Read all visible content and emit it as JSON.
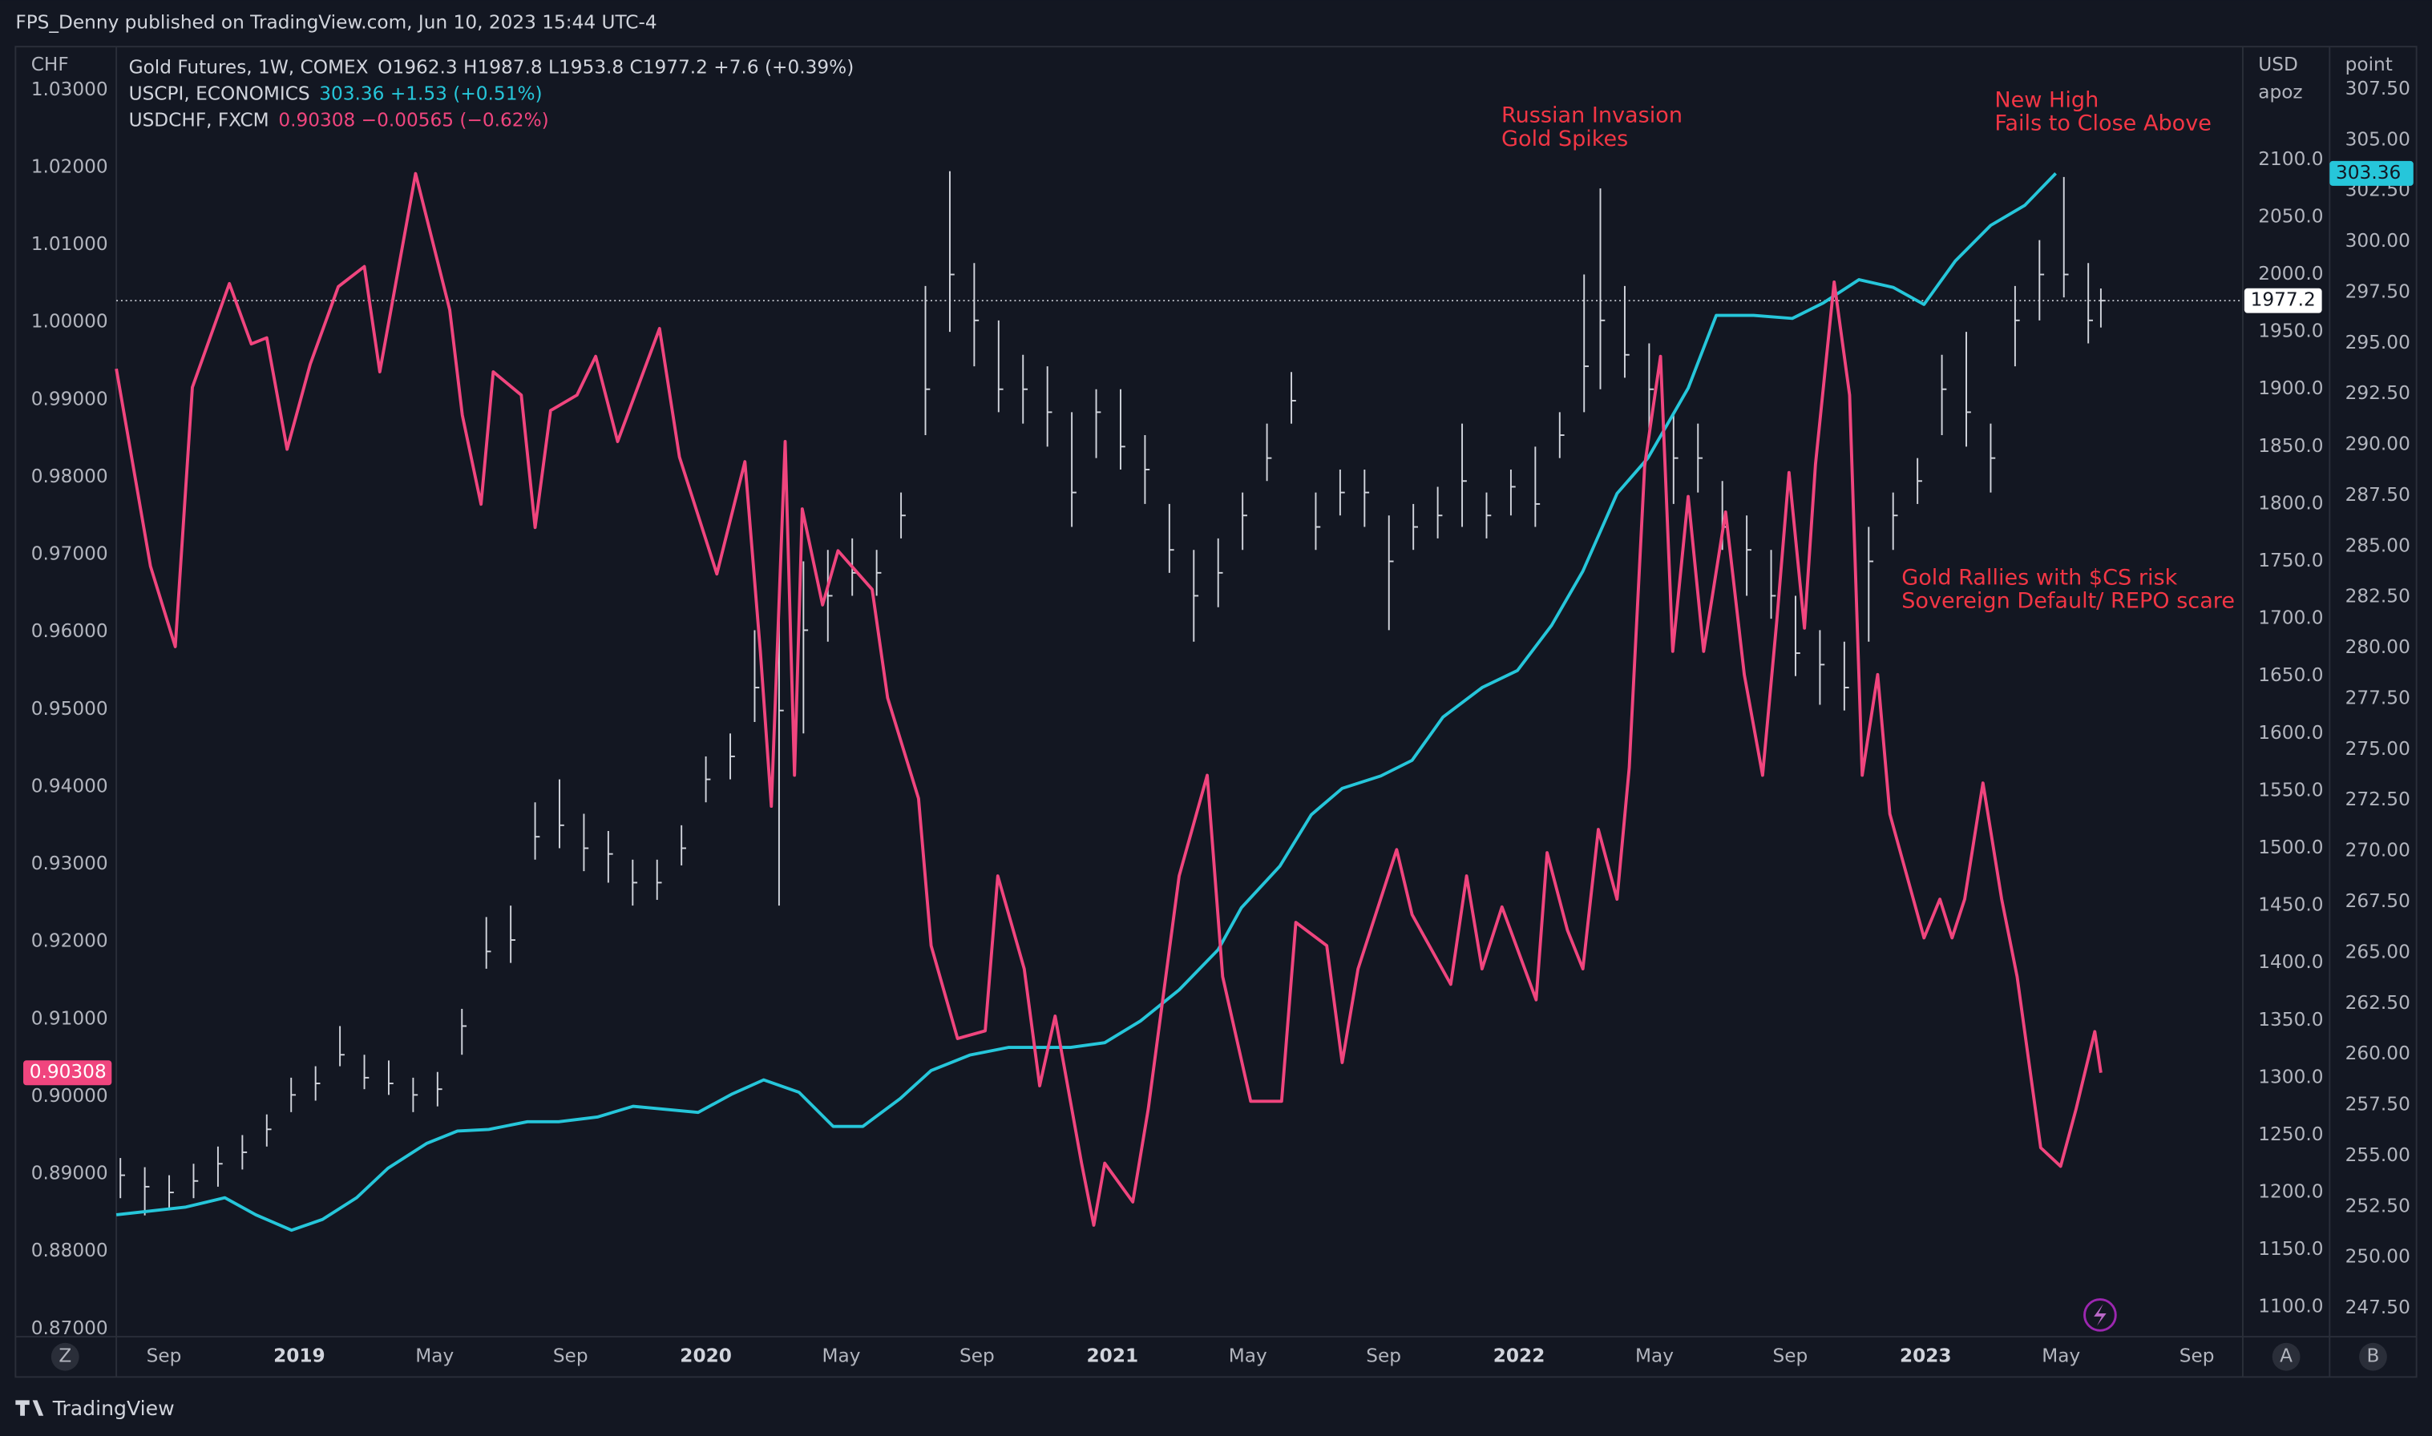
{
  "header": "FPS_Denny published on TradingView.com, Jun 10, 2023 15:44 UTC-4",
  "footer": "TradingView",
  "ui": {
    "buttons": [
      "Z",
      "A",
      "B"
    ]
  },
  "chart_data": {
    "type": "line",
    "axis_titles": {
      "y": "CHF",
      "y2": [
        "USD",
        "apoz"
      ],
      "y3": "point"
    },
    "annotations": [
      [
        "Russian Invasion",
        "Gold Spikes"
      ],
      [
        "New High",
        "Fails to Close Above"
      ],
      [
        "Gold Rallies with $CS risk",
        "Sovereign Default/ REPO scare"
      ]
    ],
    "annotation_color": "#f23645",
    "grid": true,
    "xlim": [
      2018.55,
      2023.78
    ],
    "xticks": [
      {
        "value": 2018.667,
        "label": "Sep"
      },
      2019,
      {
        "value": 2019.333,
        "label": "May"
      },
      {
        "value": 2019.667,
        "label": "Sep"
      },
      2020,
      {
        "value": 2020.333,
        "label": "May"
      },
      {
        "value": 2020.667,
        "label": "Sep"
      },
      2021,
      {
        "value": 2021.333,
        "label": "May"
      },
      {
        "value": 2021.667,
        "label": "Sep"
      },
      2022,
      {
        "value": 2022.333,
        "label": "May"
      },
      {
        "value": 2022.667,
        "label": "Sep"
      },
      2023,
      {
        "value": 2023.333,
        "label": "May"
      },
      {
        "value": 2023.667,
        "label": "Sep"
      }
    ],
    "ylim": [
      0.869,
      1.0356
    ],
    "yticks": [
      {
        "value": 0.87,
        "label": "0.87000"
      },
      {
        "value": 0.88,
        "label": "0.88000"
      },
      {
        "value": 0.89,
        "label": "0.89000"
      },
      {
        "value": 0.9,
        "label": "0.90000"
      },
      {
        "value": 0.91,
        "label": "0.91000"
      },
      {
        "value": 0.92,
        "label": "0.92000"
      },
      {
        "value": 0.93,
        "label": "0.93000"
      },
      {
        "value": 0.94,
        "label": "0.94000"
      },
      {
        "value": 0.95,
        "label": "0.95000"
      },
      {
        "value": 0.96,
        "label": "0.96000"
      },
      {
        "value": 0.97,
        "label": "0.97000"
      },
      {
        "value": 0.98,
        "label": "0.98000"
      },
      {
        "value": 0.99,
        "label": "0.99000"
      },
      {
        "value": 1.0,
        "label": "1.00000"
      },
      {
        "value": 1.01,
        "label": "1.01000"
      },
      {
        "value": 1.02,
        "label": "1.02000"
      },
      {
        "value": 1.03,
        "label": "1.03000"
      }
    ],
    "y2lim": [
      1074.3,
      2198.6
    ],
    "y2ticks": [
      {
        "value": 1100,
        "label": "1100.0"
      },
      {
        "value": 1150,
        "label": "1150.0"
      },
      {
        "value": 1200,
        "label": "1200.0"
      },
      {
        "value": 1250,
        "label": "1250.0"
      },
      {
        "value": 1300,
        "label": "1300.0"
      },
      {
        "value": 1350,
        "label": "1350.0"
      },
      {
        "value": 1400,
        "label": "1400.0"
      },
      {
        "value": 1450,
        "label": "1450.0"
      },
      {
        "value": 1500,
        "label": "1500.0"
      },
      {
        "value": 1550,
        "label": "1550.0"
      },
      {
        "value": 1600,
        "label": "1600.0"
      },
      {
        "value": 1650,
        "label": "1650.0"
      },
      {
        "value": 1700,
        "label": "1700.0"
      },
      {
        "value": 1750,
        "label": "1750.0"
      },
      {
        "value": 1800,
        "label": "1800.0"
      },
      {
        "value": 1850,
        "label": "1850.0"
      },
      {
        "value": 1900,
        "label": "1900.0"
      },
      {
        "value": 1950,
        "label": "1950.0"
      },
      {
        "value": 2000,
        "label": "2000.0"
      },
      {
        "value": 2050,
        "label": "2050.0"
      },
      {
        "value": 2100,
        "label": "2100.0"
      }
    ],
    "y3lim": [
      246.1,
      309.6
    ],
    "y3ticks": [
      {
        "value": 247.5,
        "label": "247.50"
      },
      {
        "value": 250,
        "label": "250.00"
      },
      {
        "value": 252.5,
        "label": "252.50"
      },
      {
        "value": 255,
        "label": "255.00"
      },
      {
        "value": 257.5,
        "label": "257.50"
      },
      {
        "value": 260,
        "label": "260.00"
      },
      {
        "value": 262.5,
        "label": "262.50"
      },
      {
        "value": 265,
        "label": "265.00"
      },
      {
        "value": 267.5,
        "label": "267.50"
      },
      {
        "value": 270,
        "label": "270.00"
      },
      {
        "value": 272.5,
        "label": "272.50"
      },
      {
        "value": 275,
        "label": "275.00"
      },
      {
        "value": 277.5,
        "label": "277.50"
      },
      {
        "value": 280,
        "label": "280.00"
      },
      {
        "value": 282.5,
        "label": "282.50"
      },
      {
        "value": 285,
        "label": "285.00"
      },
      {
        "value": 287.5,
        "label": "287.50"
      },
      {
        "value": 290,
        "label": "290.00"
      },
      {
        "value": 292.5,
        "label": "292.50"
      },
      {
        "value": 295,
        "label": "295.00"
      },
      {
        "value": 297.5,
        "label": "297.50"
      },
      {
        "value": 300,
        "label": "300.00"
      },
      {
        "value": 302.5,
        "label": "302.50"
      },
      {
        "value": 305,
        "label": "305.00"
      },
      {
        "value": 307.5,
        "label": "307.50"
      }
    ],
    "series": [
      {
        "name": "Gold Futures, 1W, COMEX",
        "type": "ohlc",
        "axis": "y2",
        "color": "#d1d4dc",
        "legend_text": "O1962.3 H1987.8 L1953.8 C1977.2 +7.6 (+0.39%)",
        "x": [
          2018.56,
          2018.62,
          2018.68,
          2018.74,
          2018.8,
          2018.86,
          2018.92,
          2018.98,
          2019.04,
          2019.1,
          2019.16,
          2019.22,
          2019.28,
          2019.34,
          2019.4,
          2019.46,
          2019.52,
          2019.58,
          2019.64,
          2019.7,
          2019.76,
          2019.82,
          2019.88,
          2019.94,
          2020.0,
          2020.06,
          2020.12,
          2020.18,
          2020.24,
          2020.3,
          2020.36,
          2020.42,
          2020.48,
          2020.54,
          2020.6,
          2020.66,
          2020.72,
          2020.78,
          2020.84,
          2020.9,
          2020.96,
          2021.02,
          2021.08,
          2021.14,
          2021.2,
          2021.26,
          2021.32,
          2021.38,
          2021.44,
          2021.5,
          2021.56,
          2021.62,
          2021.68,
          2021.74,
          2021.8,
          2021.86,
          2021.92,
          2021.98,
          2022.04,
          2022.1,
          2022.16,
          2022.2,
          2022.26,
          2022.32,
          2022.38,
          2022.44,
          2022.5,
          2022.56,
          2022.62,
          2022.68,
          2022.74,
          2022.8,
          2022.86,
          2022.92,
          2022.98,
          2023.04,
          2023.1,
          2023.16,
          2023.22,
          2023.28,
          2023.34,
          2023.4,
          2023.431
        ],
        "values": [
          1215,
          1205,
          1200,
          1210,
          1225,
          1235,
          1255,
          1285,
          1295,
          1320,
          1300,
          1295,
          1285,
          1290,
          1345,
          1410,
          1420,
          1510,
          1520,
          1500,
          1495,
          1470,
          1470,
          1500,
          1560,
          1580,
          1640,
          1620,
          1690,
          1720,
          1740,
          1740,
          1790,
          1900,
          2000,
          1960,
          1900,
          1900,
          1880,
          1810,
          1880,
          1850,
          1830,
          1760,
          1720,
          1740,
          1790,
          1840,
          1890,
          1780,
          1810,
          1810,
          1750,
          1780,
          1790,
          1820,
          1790,
          1815,
          1800,
          1860,
          1920,
          1960,
          1930,
          1900,
          1840,
          1840,
          1780,
          1760,
          1720,
          1670,
          1660,
          1640,
          1750,
          1790,
          1820,
          1900,
          1880,
          1840,
          1960,
          2000,
          2000,
          1960,
          1977.2
        ],
        "high": [
          1230,
          1222,
          1215,
          1225,
          1240,
          1250,
          1268,
          1300,
          1310,
          1345,
          1320,
          1315,
          1300,
          1305,
          1360,
          1440,
          1450,
          1540,
          1560,
          1530,
          1515,
          1490,
          1490,
          1520,
          1580,
          1600,
          1690,
          1700,
          1750,
          1760,
          1770,
          1760,
          1810,
          1990,
          2090,
          2010,
          1960,
          1930,
          1920,
          1880,
          1900,
          1900,
          1860,
          1800,
          1760,
          1770,
          1810,
          1870,
          1915,
          1810,
          1830,
          1830,
          1790,
          1800,
          1815,
          1870,
          1810,
          1830,
          1850,
          1880,
          2000,
          2075,
          1990,
          1940,
          1880,
          1870,
          1820,
          1790,
          1760,
          1720,
          1690,
          1680,
          1780,
          1810,
          1840,
          1930,
          1950,
          1870,
          1990,
          2030,
          2085,
          2010,
          1987.8
        ],
        "low": [
          1195,
          1180,
          1185,
          1195,
          1205,
          1220,
          1240,
          1270,
          1280,
          1310,
          1290,
          1285,
          1270,
          1275,
          1320,
          1395,
          1400,
          1490,
          1500,
          1480,
          1470,
          1450,
          1455,
          1485,
          1540,
          1560,
          1610,
          1450,
          1600,
          1680,
          1720,
          1720,
          1770,
          1860,
          1950,
          1920,
          1880,
          1870,
          1850,
          1780,
          1840,
          1830,
          1800,
          1740,
          1680,
          1710,
          1760,
          1820,
          1870,
          1760,
          1790,
          1780,
          1690,
          1760,
          1770,
          1780,
          1770,
          1790,
          1780,
          1840,
          1880,
          1900,
          1910,
          1860,
          1800,
          1810,
          1760,
          1720,
          1700,
          1650,
          1625,
          1620,
          1680,
          1760,
          1800,
          1860,
          1850,
          1810,
          1920,
          1960,
          1980,
          1940,
          1953.8
        ]
      },
      {
        "name": "USCPI, ECONOMICS",
        "type": "line",
        "axis": "y3",
        "color": "#26c6da",
        "legend_text": "303.36 +1.53 (+0.51%)",
        "x": [
          2018.55,
          2018.721,
          2018.817,
          2018.893,
          2018.981,
          2019.057,
          2019.141,
          2019.218,
          2019.313,
          2019.389,
          2019.466,
          2019.561,
          2019.638,
          2019.733,
          2019.821,
          2019.981,
          2020.065,
          2020.142,
          2020.229,
          2020.313,
          2020.386,
          2020.478,
          2020.554,
          2020.649,
          2020.745,
          2020.897,
          2020.981,
          2021.069,
          2021.164,
          2021.26,
          2021.317,
          2021.412,
          2021.489,
          2021.565,
          2021.66,
          2021.737,
          2021.813,
          2021.909,
          2021.996,
          2022.08,
          2022.157,
          2022.241,
          2022.317,
          2022.416,
          2022.485,
          2022.577,
          2022.672,
          2022.748,
          2022.836,
          2022.92,
          2022.996,
          2023.073,
          2023.16,
          2023.244,
          2023.32
        ],
        "values": [
          252.1,
          252.48,
          252.94,
          252.1,
          251.34,
          251.87,
          252.94,
          254.39,
          255.61,
          256.22,
          256.3,
          256.68,
          256.68,
          256.91,
          257.44,
          257.14,
          258.05,
          258.74,
          258.13,
          256.45,
          256.45,
          257.82,
          259.2,
          259.96,
          260.34,
          260.34,
          260.57,
          261.64,
          263.17,
          265.15,
          267.21,
          269.27,
          271.79,
          273.09,
          273.7,
          274.47,
          276.6,
          278.05,
          278.89,
          281.11,
          283.78,
          287.6,
          289.35,
          292.79,
          296.37,
          296.37,
          296.22,
          296.98,
          298.13,
          297.75,
          296.91,
          299.05,
          300.8,
          301.79,
          303.36
        ]
      },
      {
        "name": "USDCHF, FXCM",
        "type": "line",
        "axis": "y",
        "color": "#f0457e",
        "legend_text": "0.90308 −0.00565 (−0.62%)",
        "x": [
          2018.55,
          2018.634,
          2018.695,
          2018.737,
          2018.828,
          2018.882,
          2018.92,
          2018.97,
          2019.027,
          2019.096,
          2019.16,
          2019.198,
          2019.286,
          2019.37,
          2019.401,
          2019.447,
          2019.477,
          2019.546,
          2019.58,
          2019.618,
          2019.683,
          2019.729,
          2019.783,
          2019.886,
          2019.935,
          2020.027,
          2020.096,
          2020.134,
          2020.161,
          2020.195,
          2020.218,
          2020.237,
          2020.287,
          2020.325,
          2020.409,
          2020.447,
          2020.523,
          2020.554,
          2020.619,
          2020.687,
          2020.718,
          2020.783,
          2020.821,
          2020.859,
          2020.924,
          2020.954,
          2020.981,
          2021.05,
          2021.088,
          2021.164,
          2021.233,
          2021.271,
          2021.34,
          2021.416,
          2021.451,
          2021.527,
          2021.565,
          2021.604,
          2021.699,
          2021.737,
          2021.832,
          2021.871,
          2021.909,
          2021.958,
          2022.042,
          2022.069,
          2022.119,
          2022.157,
          2022.195,
          2022.241,
          2022.271,
          2022.309,
          2022.348,
          2022.378,
          2022.416,
          2022.454,
          2022.508,
          2022.554,
          2022.599,
          2022.634,
          2022.664,
          2022.702,
          2022.729,
          2022.775,
          2022.813,
          2022.844,
          2022.882,
          2022.912,
          2022.996,
          2023.035,
          2023.065,
          2023.096,
          2023.141,
          2023.187,
          2023.225,
          2023.283,
          2023.332,
          2023.37,
          2023.416,
          2023.431
        ],
        "values": [
          0.994,
          0.9685,
          0.9581,
          0.9916,
          1.005,
          0.9972,
          0.998,
          0.9836,
          0.9946,
          1.0046,
          1.0072,
          0.9936,
          1.0192,
          1.0016,
          0.988,
          0.9765,
          0.9936,
          0.9906,
          0.9735,
          0.9886,
          0.9906,
          0.9956,
          0.9846,
          0.9992,
          0.9826,
          0.9675,
          0.982,
          0.9575,
          0.9375,
          0.9846,
          0.9415,
          0.9759,
          0.9635,
          0.9705,
          0.9655,
          0.9515,
          0.9385,
          0.9195,
          0.9075,
          0.9085,
          0.9285,
          0.9165,
          0.9014,
          0.9104,
          0.8914,
          0.8834,
          0.8914,
          0.8864,
          0.8984,
          0.9285,
          0.9415,
          0.9155,
          0.8994,
          0.8994,
          0.9225,
          0.9195,
          0.9044,
          0.9165,
          0.9319,
          0.9235,
          0.9145,
          0.9285,
          0.9165,
          0.9245,
          0.9125,
          0.9315,
          0.9215,
          0.9165,
          0.9345,
          0.9255,
          0.9425,
          0.9815,
          0.9956,
          0.9575,
          0.9775,
          0.9575,
          0.9755,
          0.9545,
          0.9415,
          0.9615,
          0.9806,
          0.9605,
          0.9816,
          1.0052,
          0.9906,
          0.9415,
          0.9545,
          0.9365,
          0.9205,
          0.9255,
          0.9205,
          0.9255,
          0.9405,
          0.9255,
          0.9155,
          0.8934,
          0.891,
          0.8984,
          0.9084,
          0.90308
        ]
      }
    ]
  }
}
